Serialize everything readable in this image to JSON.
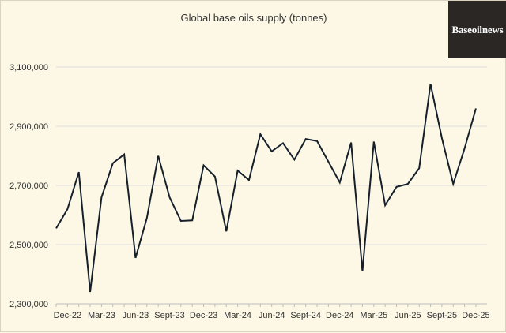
{
  "chart_data": {
    "type": "line",
    "title": "Global base oils supply (tonnes)",
    "xlabel": "",
    "ylabel": "",
    "ylim": [
      2300000,
      3100000
    ],
    "grid": true,
    "yticks": [
      2300000,
      2500000,
      2700000,
      2900000,
      3100000
    ],
    "ytick_labels": [
      "2,300,000",
      "2,500,000",
      "2,700,000",
      "2,900,000",
      "3,100,000"
    ],
    "xtick_labels": [
      "Dec-22",
      "Mar-23",
      "Jun-23",
      "Sept-23",
      "Dec-23",
      "Mar-24",
      "Jun-24",
      "Sept-24",
      "Dec-24",
      "Mar-25",
      "Jun-25",
      "Sept-25",
      "Dec-25"
    ],
    "xtick_interval_months": 3,
    "series": [
      {
        "color": "#15202b",
        "values": [
          2555000,
          2620000,
          2745000,
          2340000,
          2660000,
          2775000,
          2805000,
          2455000,
          2590000,
          2800000,
          2660000,
          2580000,
          2582000,
          2768000,
          2730000,
          2545000,
          2750000,
          2718000,
          2873000,
          2815000,
          2843000,
          2787000,
          2857000,
          2850000,
          2780000,
          2710000,
          2845000,
          2410000,
          2848000,
          2633000,
          2695000,
          2705000,
          2758000,
          3043000,
          2860000,
          2705000,
          2825000,
          2960000
        ]
      }
    ]
  },
  "logo": {
    "text": "Baseoilnews"
  }
}
